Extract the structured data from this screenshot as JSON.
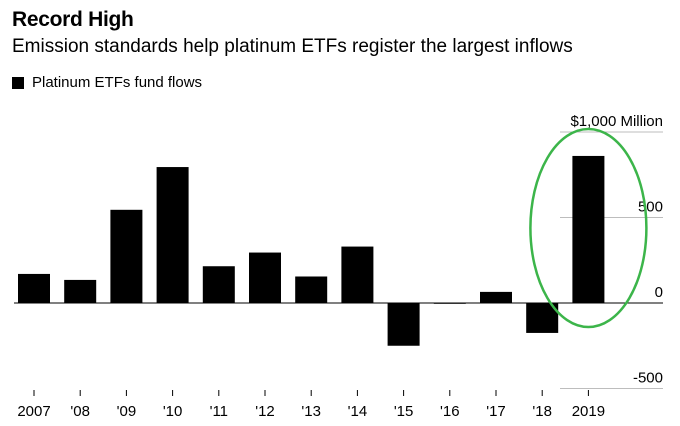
{
  "header": {
    "title": "Record High",
    "subtitle": "Emission standards help platinum ETFs register the largest inflows"
  },
  "legend": {
    "label": "Platinum ETFs fund flows",
    "color": "#000000"
  },
  "annotation": {
    "shape": "ellipse",
    "target": "2019",
    "color": "#3cb54a"
  },
  "chart_data": {
    "type": "bar",
    "categories": [
      "2007",
      "'08",
      "'09",
      "'10",
      "'11",
      "'12",
      "'13",
      "'14",
      "'15",
      "'16",
      "'17",
      "'18",
      "2019"
    ],
    "series": [
      {
        "name": "Platinum ETFs fund flows",
        "values": [
          170,
          135,
          545,
          795,
          215,
          295,
          155,
          330,
          -250,
          -3,
          65,
          -175,
          860
        ]
      }
    ],
    "y_ticks": [
      {
        "value": 1000,
        "label": "$1,000 Million"
      },
      {
        "value": 500,
        "label": "500"
      },
      {
        "value": 0,
        "label": "0"
      },
      {
        "value": -500,
        "label": "-500"
      }
    ],
    "ylim": [
      -500,
      1000
    ],
    "bar_color": "#000000",
    "grid": true,
    "legend_position": "top-left"
  }
}
